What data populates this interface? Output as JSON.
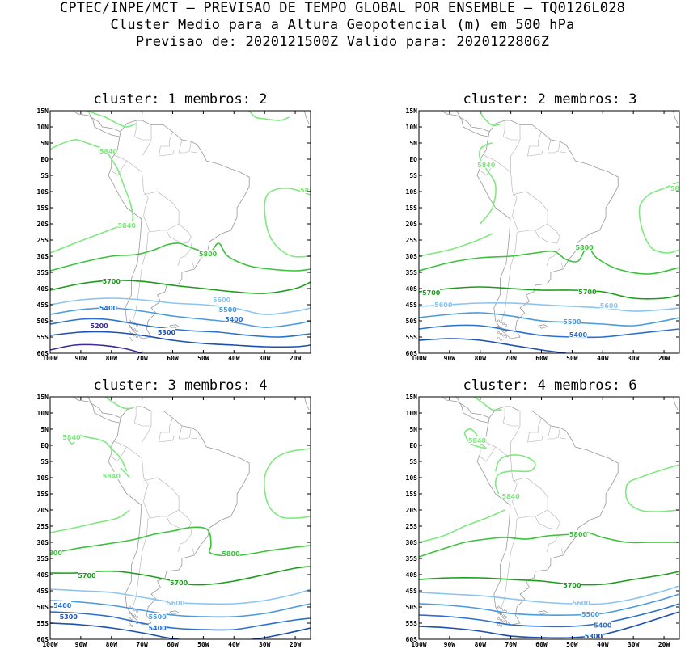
{
  "header": {
    "line1": "CPTEC/INPE/MCT – PREVISAO DE TEMPO GLOBAL POR ENSEMBLE – TQ0126L028",
    "line2": "Cluster Medio para a Altura Geopotencial (m) em 500 hPa",
    "line3": "Previsao de: 2020121500Z   Valido para: 2020122806Z"
  },
  "axes": {
    "lat_labels": [
      "15N",
      "10N",
      "5N",
      "EQ",
      "5S",
      "10S",
      "15S",
      "20S",
      "25S",
      "30S",
      "35S",
      "40S",
      "45S",
      "50S",
      "55S",
      "60S"
    ],
    "lon_labels": [
      "100W",
      "90W",
      "80W",
      "70W",
      "60W",
      "50W",
      "40W",
      "30W",
      "20W"
    ]
  },
  "colors": {
    "c5840": "#7fe87f",
    "c5800": "#3cc23c",
    "c5700": "#1a9e1a",
    "c5600": "#8cc4f0",
    "c5500": "#4a9ae0",
    "c5400": "#2a70d0",
    "c5300": "#1c4fb0",
    "c5200": "#3a2aa0",
    "land": "#999999"
  },
  "panels": [
    {
      "title": "cluster: 1   membros: 2",
      "labels": [
        "5840",
        "5840",
        "5840",
        "5800",
        "5700",
        "5600",
        "5500",
        "5400",
        "5400",
        "5300",
        "5200"
      ]
    },
    {
      "title": "cluster: 2   membros: 3",
      "labels": [
        "5840",
        "5840",
        "5800",
        "5700",
        "5700",
        "5600",
        "5600",
        "5500",
        "5400"
      ]
    },
    {
      "title": "cluster: 3   membros: 4",
      "labels": [
        "5840",
        "5840",
        "5800",
        "5800",
        "5700",
        "5700",
        "5600",
        "5400",
        "5300",
        "5500",
        "5400"
      ]
    },
    {
      "title": "cluster: 4   membros: 6",
      "labels": [
        "5840",
        "5840",
        "5800",
        "5700",
        "5600",
        "5500",
        "5400",
        "5300"
      ]
    }
  ]
}
